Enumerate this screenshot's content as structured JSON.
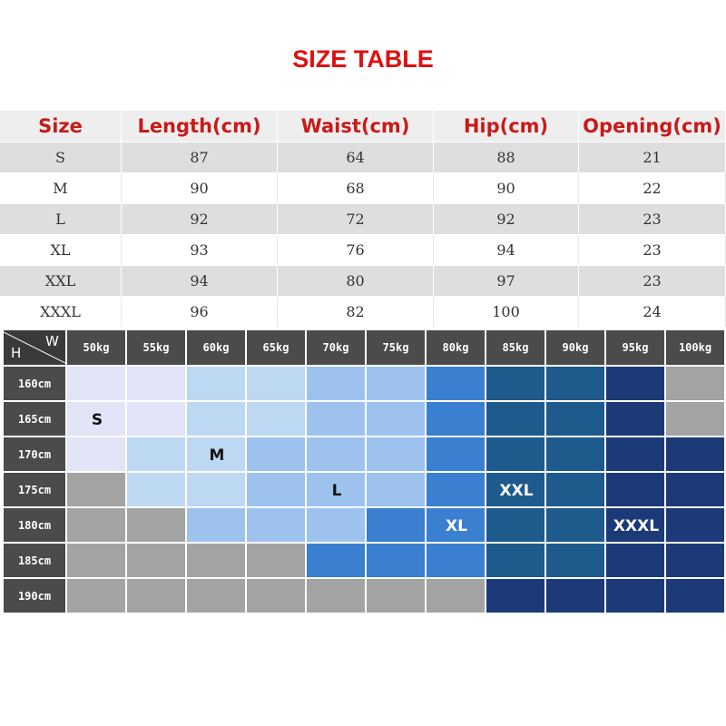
{
  "title": "SIZE TABLE",
  "size_table": {
    "headers": [
      "Size",
      "Length(cm)",
      "Waist(cm)",
      "Hip(cm)",
      "Opening(cm)"
    ],
    "rows": [
      [
        "S",
        "87",
        "64",
        "88",
        "21"
      ],
      [
        "M",
        "90",
        "68",
        "90",
        "22"
      ],
      [
        "L",
        "92",
        "72",
        "92",
        "23"
      ],
      [
        "XL",
        "93",
        "76",
        "94",
        "23"
      ],
      [
        "XXL",
        "94",
        "80",
        "97",
        "23"
      ],
      [
        "XXXL",
        "96",
        "82",
        "100",
        "24"
      ]
    ]
  },
  "grid": {
    "corner_h": "H",
    "corner_w": "W",
    "weights": [
      "50kg",
      "55kg",
      "60kg",
      "65kg",
      "70kg",
      "75kg",
      "80kg",
      "85kg",
      "90kg",
      "95kg",
      "100kg"
    ],
    "heights": [
      "160cm",
      "165cm",
      "170cm",
      "175cm",
      "180cm",
      "185cm",
      "190cm"
    ],
    "cells": [
      [
        "S",
        "S",
        "M",
        "M",
        "L",
        "L",
        "XL",
        "XXL",
        "XXL",
        "XXXL",
        "none"
      ],
      [
        "S",
        "S",
        "M",
        "M",
        "L",
        "L",
        "XL",
        "XXL",
        "XXL",
        "XXXL",
        "none"
      ],
      [
        "S",
        "M",
        "M",
        "L",
        "L",
        "L",
        "XL",
        "XXL",
        "XXL",
        "XXXL",
        "XXXL"
      ],
      [
        "none",
        "M",
        "M",
        "L",
        "L",
        "L",
        "XL",
        "XXL",
        "XXL",
        "XXXL",
        "XXXL"
      ],
      [
        "none",
        "none",
        "L",
        "L",
        "L",
        "XL",
        "XL",
        "XXL",
        "XXL",
        "XXXL",
        "XXXL"
      ],
      [
        "none",
        "none",
        "none",
        "none",
        "XL",
        "XL",
        "XL",
        "XXL",
        "XXL",
        "XXXL",
        "XXXL"
      ],
      [
        "none",
        "none",
        "none",
        "none",
        "none",
        "none",
        "none",
        "XXXL",
        "XXXL",
        "XXXL",
        "XXXL"
      ]
    ],
    "labels": [
      {
        "text": "S",
        "row": 1,
        "col": 0
      },
      {
        "text": "M",
        "row": 2,
        "col": 2
      },
      {
        "text": "L",
        "row": 3,
        "col": 4
      },
      {
        "text": "XXL",
        "row": 3,
        "col": 7
      },
      {
        "text": "XL",
        "row": 4,
        "col": 6
      },
      {
        "text": "XXXL",
        "row": 4,
        "col": 9
      }
    ],
    "colors": {
      "S": "#e3e4f7",
      "M": "#bdd8f3",
      "L": "#9dc2ee",
      "XL": "#3a7fd0",
      "XXL": "#1f5a8d",
      "XXXL": "#1c3a78",
      "none": "#a3a3a3",
      "header": "#4b4b4b",
      "label_dark": "#111111",
      "label_light": "#ffffff"
    }
  }
}
